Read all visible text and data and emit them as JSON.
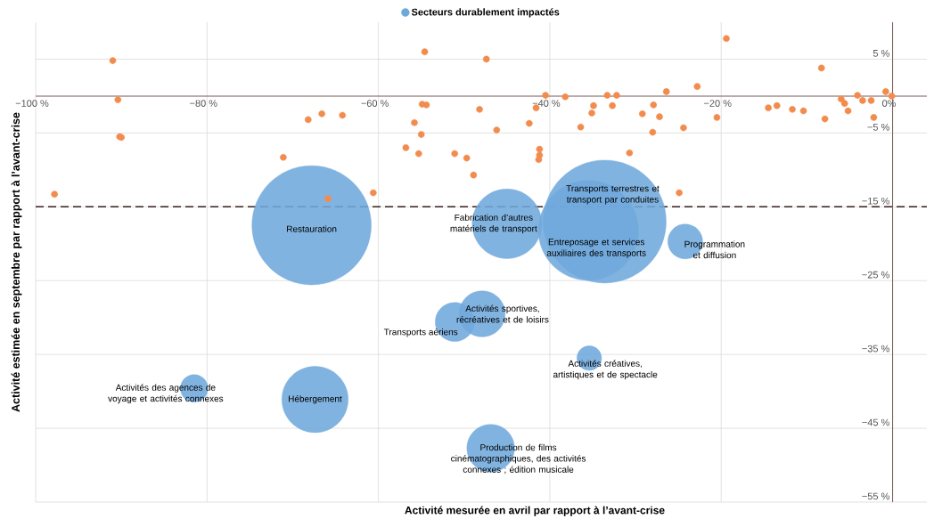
{
  "chart_data": {
    "type": "scatter",
    "xlabel": "Activité mesurée en avril par rapport à l’avant-crise",
    "ylabel": "Activité estimée en septembre par rapport à l’avant-crise",
    "xlim": [
      -100,
      4
    ],
    "ylim": [
      -55,
      10
    ],
    "xticks": [
      {
        "value": -100,
        "label": "−100 %"
      },
      {
        "value": -80,
        "label": "−80 %"
      },
      {
        "value": -60,
        "label": "−60 %"
      },
      {
        "value": -40,
        "label": "−40 %"
      },
      {
        "value": -20,
        "label": "−20 %"
      },
      {
        "value": 0,
        "label": "0%"
      }
    ],
    "yticks": [
      {
        "value": 5,
        "label": "5 %"
      },
      {
        "value": -5,
        "label": "−5 %"
      },
      {
        "value": -15,
        "label": "−15 %"
      },
      {
        "value": -25,
        "label": "−25 %"
      },
      {
        "value": -35,
        "label": "−35 %"
      },
      {
        "value": -45,
        "label": "−45 %"
      },
      {
        "value": -55,
        "label": "−55 %"
      }
    ],
    "grid": true,
    "legend": "top",
    "ref_lines": [
      {
        "axis": "y",
        "value": -15,
        "color": "#3b1e1e",
        "line_style": "dashed"
      }
    ],
    "series": [
      {
        "type": "scatter",
        "color": "#f28c4e",
        "x": [
          -91.0,
          -90.4,
          -90.2,
          -90.0,
          -97.8,
          -71.1,
          -68.2,
          -66.6,
          -64.2,
          -65.9,
          -60.6,
          -54.6,
          -54.9,
          -54.4,
          -55.8,
          -55.0,
          -56.8,
          -55.3,
          -51.1,
          -47.4,
          -40.5,
          -38.2,
          -33.3,
          -32.2,
          -26.4,
          -22.8,
          -19.4,
          -8.3,
          -0.8,
          -0.1,
          -4.1,
          -6.0,
          -5.6,
          -5.2,
          -3.5,
          -2.5,
          -2.2,
          -7.9,
          -10.4,
          -11.7,
          -13.5,
          -14.5,
          -20.5,
          -24.4,
          -27.2,
          -27.9,
          -28.0,
          -29.2,
          -30.7,
          -24.9,
          -32.7,
          -34.9,
          -35.1,
          -36.4,
          -41.6,
          -42.4,
          -41.2,
          -41.2,
          -41.3,
          -46.2,
          -48.2,
          -49.7,
          -48.9
        ],
        "values": [
          4.8,
          -0.5,
          -5.5,
          -5.6,
          -13.3,
          -8.3,
          -3.2,
          -2.4,
          -2.6,
          -13.9,
          -13.1,
          6.0,
          -1.1,
          -1.2,
          -3.6,
          -5.2,
          -7.0,
          -7.8,
          -7.8,
          5.0,
          0.1,
          -0.1,
          0.1,
          0.1,
          0.6,
          1.3,
          7.8,
          3.8,
          0.6,
          0,
          0.1,
          -0.4,
          -1.0,
          -2.0,
          -0.6,
          -0.6,
          -2.9,
          -3.1,
          -2.0,
          -1.8,
          -1.3,
          -1.6,
          -2.9,
          -4.3,
          -2.8,
          -1.2,
          -4.9,
          -2.4,
          -7.7,
          -13.1,
          -1.3,
          -1.3,
          -2.3,
          -4.2,
          -1.6,
          -3.7,
          -7.2,
          -8.0,
          -8.6,
          -4.6,
          -1.8,
          -8.4,
          -10.7
        ]
      },
      {
        "type": "bubble",
        "name": "Secteurs durablement impactés",
        "color": "#6fa8dc",
        "x": [
          -67.8,
          -33.6,
          -35.5,
          -45.0,
          -24.2,
          -47.9,
          -51.1,
          -35.4,
          -46.9,
          -81.5,
          -67.4
        ],
        "values": [
          -17.5,
          -17.0,
          -18.2,
          -17.3,
          -19.7,
          -29.5,
          -30.6,
          -35.5,
          -47.7,
          -39.6,
          -41.1
        ],
        "sizes": [
          0.94,
          1,
          0.66,
          0.32,
          0.08,
          0.14,
          0.1,
          0.04,
          0.15,
          0.05,
          0.29
        ]
      }
    ],
    "annotations": [
      {
        "text": "Restauration",
        "x": -67.8,
        "y": -17.5
      },
      {
        "text": "Transports terrestres et transport par conduites",
        "x": -33.6,
        "y": -17.0
      },
      {
        "text": "Entreposage et services auxiliaires des transports",
        "x": -35.5,
        "y": -18.2
      },
      {
        "text": "Fabrication d’autres matériels de transport",
        "x": -45.0,
        "y": -17.3
      },
      {
        "text": "Programmation et diffusion",
        "x": -24.2,
        "y": -19.7
      },
      {
        "text": "Activités sportives, récréatives et de loisirs",
        "x": -47.9,
        "y": -29.5
      },
      {
        "text": "Transports aériens",
        "x": -51.1,
        "y": -30.6
      },
      {
        "text": "Activités créatives, artistiques et de spectacle",
        "x": -35.4,
        "y": -35.5
      },
      {
        "text": "Production de films cinématographiques, des activités connexes ; édition musicale",
        "x": -46.9,
        "y": -47.7
      },
      {
        "text": "Activités des agences de voyage et activités connexes",
        "x": -81.5,
        "y": -39.6
      },
      {
        "text": "Hébergement",
        "x": -67.4,
        "y": -41.1
      }
    ]
  }
}
